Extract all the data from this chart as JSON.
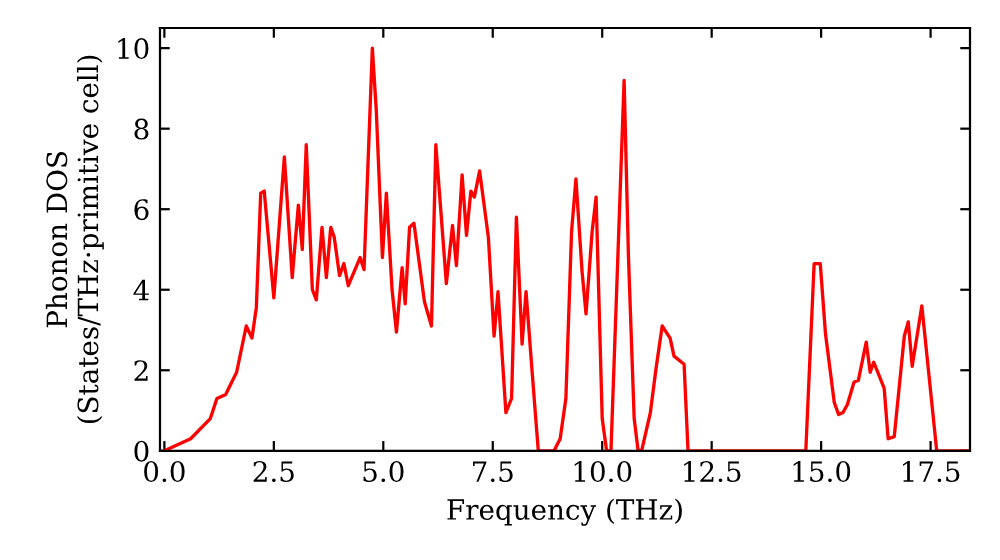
{
  "chart_data": {
    "type": "line",
    "xlabel": "Frequency (THz)",
    "ylabel": "Phonon DOS\n(States/THz·primitive cell)",
    "xlim": [
      -0.1,
      18.4
    ],
    "ylim": [
      0,
      10.5
    ],
    "xticks": [
      {
        "value": 0,
        "label": "0.0"
      },
      {
        "value": 2.5,
        "label": "2.5"
      },
      {
        "value": 5,
        "label": "5.0"
      },
      {
        "value": 7.5,
        "label": "7.5"
      },
      {
        "value": 10,
        "label": "10.0"
      },
      {
        "value": 12.5,
        "label": "12.5"
      },
      {
        "value": 15,
        "label": "15.0"
      },
      {
        "value": 17.5,
        "label": "17.5"
      }
    ],
    "yticks": [
      0,
      2,
      4,
      6,
      8,
      10
    ],
    "grid": false,
    "marker": "none",
    "line_style": "solid",
    "series": [
      {
        "color": "#ff0000",
        "x": [
          0,
          0.6,
          1.05,
          1.2,
          1.4,
          1.65,
          1.87,
          2.0,
          2.1,
          2.2,
          2.28,
          2.5,
          2.74,
          2.92,
          3.06,
          3.15,
          3.24,
          3.38,
          3.47,
          3.6,
          3.7,
          3.8,
          3.88,
          4.0,
          4.1,
          4.2,
          4.47,
          4.56,
          4.75,
          4.84,
          4.98,
          5.07,
          5.2,
          5.3,
          5.43,
          5.5,
          5.6,
          5.7,
          5.94,
          6.1,
          6.2,
          6.44,
          6.58,
          6.67,
          6.8,
          6.9,
          7.0,
          7.08,
          7.2,
          7.4,
          7.53,
          7.62,
          7.8,
          7.93,
          8.04,
          8.17,
          8.26,
          8.4,
          8.54,
          8.9,
          9.04,
          9.17,
          9.3,
          9.4,
          9.54,
          9.63,
          9.77,
          9.86,
          10.0,
          10.1,
          10.2,
          10.5,
          10.6,
          10.73,
          10.82,
          10.9,
          11.1,
          11.23,
          11.37,
          11.55,
          11.64,
          11.87,
          11.96,
          14.65,
          14.84,
          14.98,
          15.1,
          15.3,
          15.4,
          15.5,
          15.6,
          15.75,
          15.85,
          16.03,
          16.12,
          16.2,
          16.35,
          16.44,
          16.53,
          16.67,
          16.9,
          16.99,
          17.08,
          17.3,
          17.64,
          18.4
        ],
        "values": [
          0,
          0.3,
          0.8,
          1.3,
          1.4,
          1.95,
          3.1,
          2.8,
          3.55,
          6.4,
          6.45,
          3.8,
          7.3,
          4.3,
          6.1,
          5.0,
          7.6,
          4.0,
          3.75,
          5.55,
          4.3,
          5.55,
          5.3,
          4.35,
          4.65,
          4.1,
          4.8,
          4.5,
          10.0,
          8.45,
          4.8,
          6.4,
          4.0,
          2.95,
          4.55,
          3.65,
          5.55,
          5.65,
          3.7,
          3.1,
          7.6,
          4.15,
          5.6,
          4.6,
          6.85,
          5.35,
          6.45,
          6.3,
          6.95,
          5.3,
          2.85,
          3.95,
          0.95,
          1.3,
          5.8,
          2.65,
          3.95,
          1.95,
          0,
          0,
          0.3,
          1.3,
          5.45,
          6.75,
          4.45,
          3.4,
          5.45,
          6.3,
          0.8,
          0,
          0,
          9.2,
          4.8,
          0.8,
          0,
          0,
          0.95,
          2.05,
          3.1,
          2.8,
          2.35,
          2.15,
          0,
          0,
          4.65,
          4.65,
          2.9,
          1.2,
          0.9,
          0.95,
          1.15,
          1.7,
          1.75,
          2.7,
          1.95,
          2.2,
          1.8,
          1.55,
          0.3,
          0.35,
          2.85,
          3.2,
          2.1,
          3.6,
          0,
          0
        ]
      }
    ]
  }
}
